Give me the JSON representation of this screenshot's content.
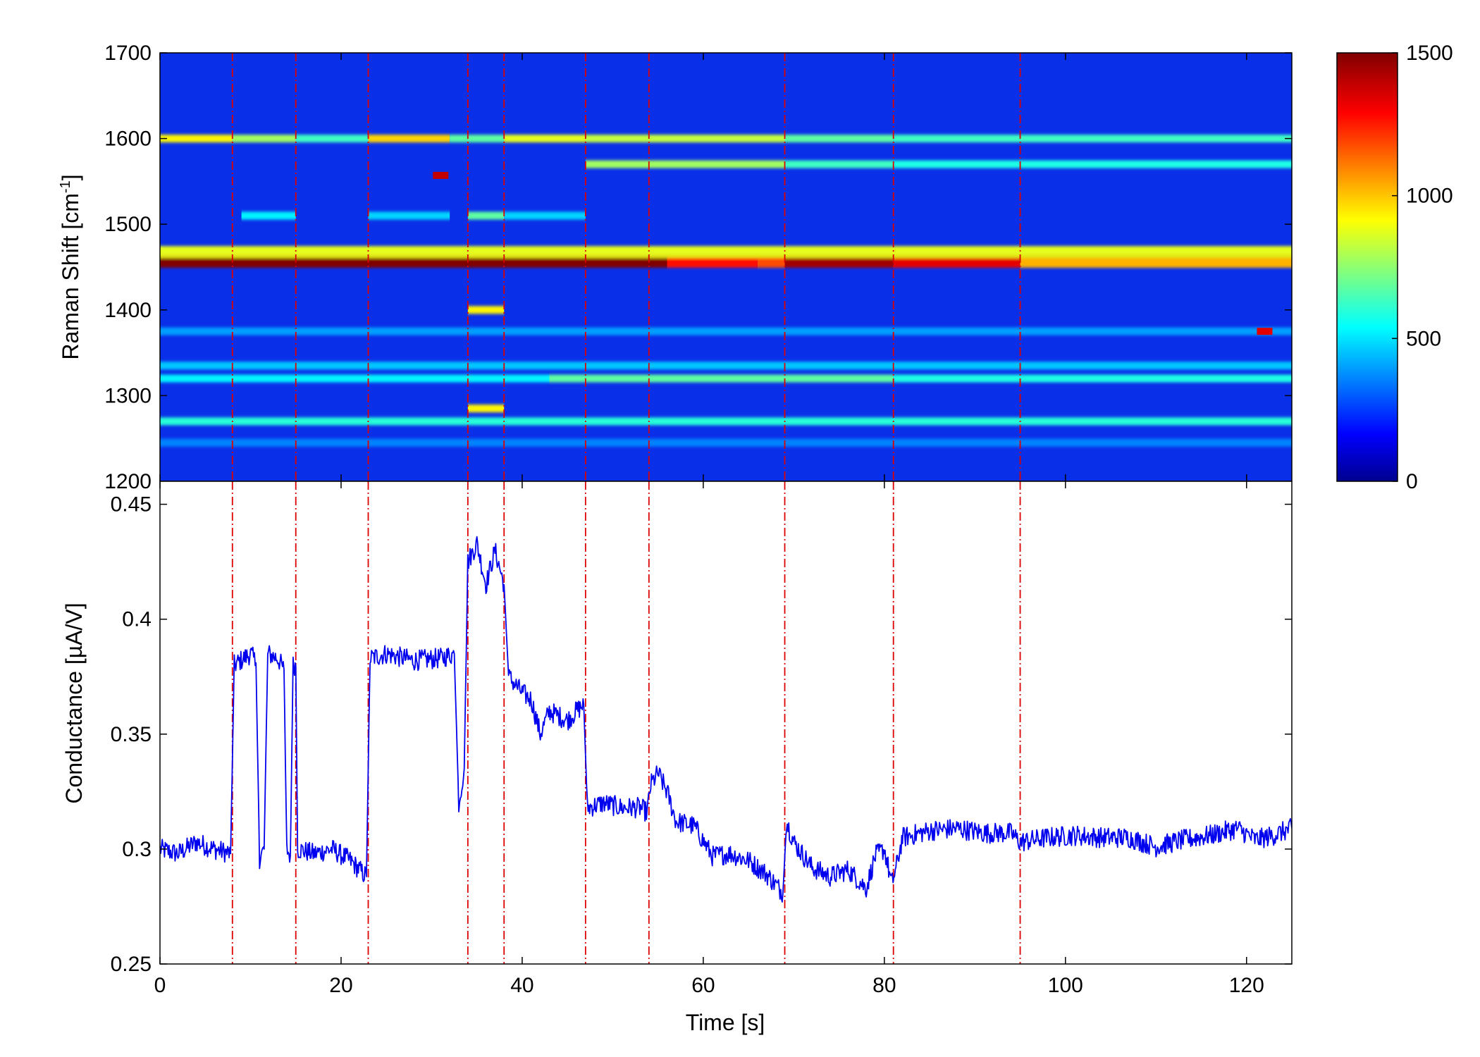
{
  "chart_data": [
    {
      "type": "heatmap",
      "title": "",
      "xlabel": "",
      "ylabel": "Raman Shift [cm",
      "ylabel_sup": "-1",
      "ylabel_close": "]",
      "xlim": [
        0,
        125
      ],
      "ylim": [
        1200,
        1700
      ],
      "x_ticks": [
        0,
        20,
        40,
        60,
        80,
        100,
        120
      ],
      "y_ticks": [
        1200,
        1300,
        1400,
        1500,
        1600,
        1700
      ],
      "y_tick_labels": [
        "1200",
        "1300",
        "1400",
        "1500",
        "1600",
        "1700"
      ],
      "colorbar": {
        "colormap": "jet",
        "range": [
          0,
          1500
        ],
        "ticks": [
          0,
          500,
          1000,
          1500
        ],
        "tick_labels": [
          "0",
          "500",
          "1000",
          "1500"
        ]
      },
      "bands": [
        {
          "shift": 1600,
          "intensity": 950,
          "segments": [
            [
              0,
              8,
              950
            ],
            [
              8,
              15,
              800
            ],
            [
              15,
              23,
              650
            ],
            [
              23,
              32,
              1000
            ],
            [
              32,
              38,
              700
            ],
            [
              38,
              47,
              900
            ],
            [
              47,
              69,
              850
            ],
            [
              69,
              81,
              700
            ],
            [
              81,
              95,
              650
            ],
            [
              95,
              125,
              650
            ]
          ]
        },
        {
          "shift": 1570,
          "intensity": 700,
          "segments": [
            [
              47,
              69,
              800
            ],
            [
              69,
              81,
              650
            ],
            [
              81,
              95,
              600
            ],
            [
              95,
              125,
              600
            ]
          ]
        },
        {
          "shift": 1510,
          "intensity": 500,
          "segments": [
            [
              9,
              15,
              550
            ],
            [
              23,
              32,
              500
            ],
            [
              34,
              38,
              700
            ],
            [
              38,
              47,
              500
            ]
          ]
        },
        {
          "shift": 1455,
          "intensity": 1500,
          "segments": [
            [
              0,
              56,
              1500
            ],
            [
              56,
              66,
              1300
            ],
            [
              66,
              69,
              1200
            ],
            [
              69,
              81,
              1450
            ],
            [
              81,
              95,
              1350
            ],
            [
              95,
              125,
              1050
            ]
          ]
        },
        {
          "shift": 1470,
          "intensity": 900,
          "segments": [
            [
              0,
              125,
              900
            ]
          ]
        },
        {
          "shift": 1400,
          "intensity": 950,
          "segments": [
            [
              34,
              38,
              950
            ]
          ]
        },
        {
          "shift": 1375,
          "intensity": 450,
          "segments": [
            [
              0,
              125,
              420
            ]
          ]
        },
        {
          "shift": 1335,
          "intensity": 500,
          "segments": [
            [
              0,
              125,
              480
            ]
          ]
        },
        {
          "shift": 1320,
          "intensity": 650,
          "segments": [
            [
              0,
              47,
              550
            ],
            [
              43,
              47,
              700
            ],
            [
              47,
              69,
              700
            ],
            [
              69,
              81,
              700
            ],
            [
              81,
              125,
              600
            ]
          ]
        },
        {
          "shift": 1285,
          "intensity": 950,
          "segments": [
            [
              34,
              38,
              950
            ]
          ]
        },
        {
          "shift": 1270,
          "intensity": 650,
          "segments": [
            [
              0,
              125,
              620
            ]
          ]
        },
        {
          "shift": 1245,
          "intensity": 400,
          "segments": [
            [
              0,
              125,
              380
            ]
          ]
        }
      ],
      "spots": [
        {
          "x": 31,
          "shift": 1557,
          "intensity": 1400
        },
        {
          "x": 122,
          "shift": 1375,
          "intensity": 1350
        }
      ],
      "event_lines": [
        8,
        15,
        23,
        34,
        38,
        47,
        54,
        69,
        81,
        95
      ]
    },
    {
      "type": "line",
      "title": "",
      "xlabel": "Time [s]",
      "ylabel": "Conductance [µA/V]",
      "xlim": [
        0,
        125
      ],
      "ylim": [
        0.25,
        0.46
      ],
      "x_ticks": [
        0,
        20,
        40,
        60,
        80,
        100,
        120
      ],
      "x_tick_labels": [
        "0",
        "20",
        "40",
        "60",
        "80",
        "100",
        "120"
      ],
      "y_ticks": [
        0.25,
        0.3,
        0.35,
        0.4,
        0.45
      ],
      "y_tick_labels": [
        "0.25",
        "0.3",
        "0.35",
        "0.4",
        "0.45"
      ],
      "series": [
        {
          "color": "#0000ee",
          "points": [
            [
              0,
              0.3
            ],
            [
              2,
              0.298
            ],
            [
              4,
              0.303
            ],
            [
              6,
              0.3
            ],
            [
              7.8,
              0.298
            ],
            [
              8.2,
              0.38
            ],
            [
              10,
              0.385
            ],
            [
              10.6,
              0.381
            ],
            [
              11,
              0.296
            ],
            [
              11.5,
              0.3
            ],
            [
              11.9,
              0.385
            ],
            [
              13,
              0.383
            ],
            [
              13.7,
              0.378
            ],
            [
              14,
              0.3
            ],
            [
              14.4,
              0.297
            ],
            [
              14.7,
              0.38
            ],
            [
              15,
              0.38
            ],
            [
              15.2,
              0.3
            ],
            [
              17,
              0.298
            ],
            [
              19,
              0.3
            ],
            [
              21,
              0.295
            ],
            [
              22.8,
              0.288
            ],
            [
              23.2,
              0.383
            ],
            [
              25,
              0.385
            ],
            [
              28,
              0.382
            ],
            [
              31,
              0.383
            ],
            [
              32.5,
              0.385
            ],
            [
              33,
              0.32
            ],
            [
              33.6,
              0.335
            ],
            [
              34,
              0.425
            ],
            [
              35,
              0.433
            ],
            [
              36,
              0.415
            ],
            [
              37,
              0.43
            ],
            [
              38,
              0.415
            ],
            [
              38.5,
              0.375
            ],
            [
              40,
              0.368
            ],
            [
              41,
              0.365
            ],
            [
              42,
              0.35
            ],
            [
              43,
              0.36
            ],
            [
              44,
              0.358
            ],
            [
              45,
              0.356
            ],
            [
              46,
              0.36
            ],
            [
              46.8,
              0.363
            ],
            [
              47.2,
              0.318
            ],
            [
              49,
              0.32
            ],
            [
              51,
              0.318
            ],
            [
              53,
              0.318
            ],
            [
              53.8,
              0.316
            ],
            [
              54.2,
              0.328
            ],
            [
              55,
              0.333
            ],
            [
              56,
              0.325
            ],
            [
              57,
              0.312
            ],
            [
              59,
              0.31
            ],
            [
              61,
              0.297
            ],
            [
              63,
              0.298
            ],
            [
              65,
              0.295
            ],
            [
              67,
              0.289
            ],
            [
              68.8,
              0.281
            ],
            [
              69.2,
              0.312
            ],
            [
              70,
              0.303
            ],
            [
              72,
              0.292
            ],
            [
              74,
              0.288
            ],
            [
              76,
              0.291
            ],
            [
              78,
              0.283
            ],
            [
              79,
              0.297
            ],
            [
              80,
              0.3
            ],
            [
              80.8,
              0.285
            ],
            [
              81.2,
              0.29
            ],
            [
              82,
              0.305
            ],
            [
              85,
              0.308
            ],
            [
              88,
              0.309
            ],
            [
              91,
              0.307
            ],
            [
              94,
              0.307
            ],
            [
              95,
              0.303
            ],
            [
              98,
              0.305
            ],
            [
              101,
              0.306
            ],
            [
              104,
              0.305
            ],
            [
              107,
              0.305
            ],
            [
              110,
              0.301
            ],
            [
              113,
              0.304
            ],
            [
              116,
              0.306
            ],
            [
              119,
              0.309
            ],
            [
              121,
              0.304
            ],
            [
              123,
              0.306
            ],
            [
              125,
              0.309
            ]
          ]
        }
      ],
      "event_lines": [
        8,
        15,
        23,
        34,
        38,
        47,
        54,
        69,
        81,
        95
      ],
      "event_line_color": "#dd0000"
    }
  ]
}
